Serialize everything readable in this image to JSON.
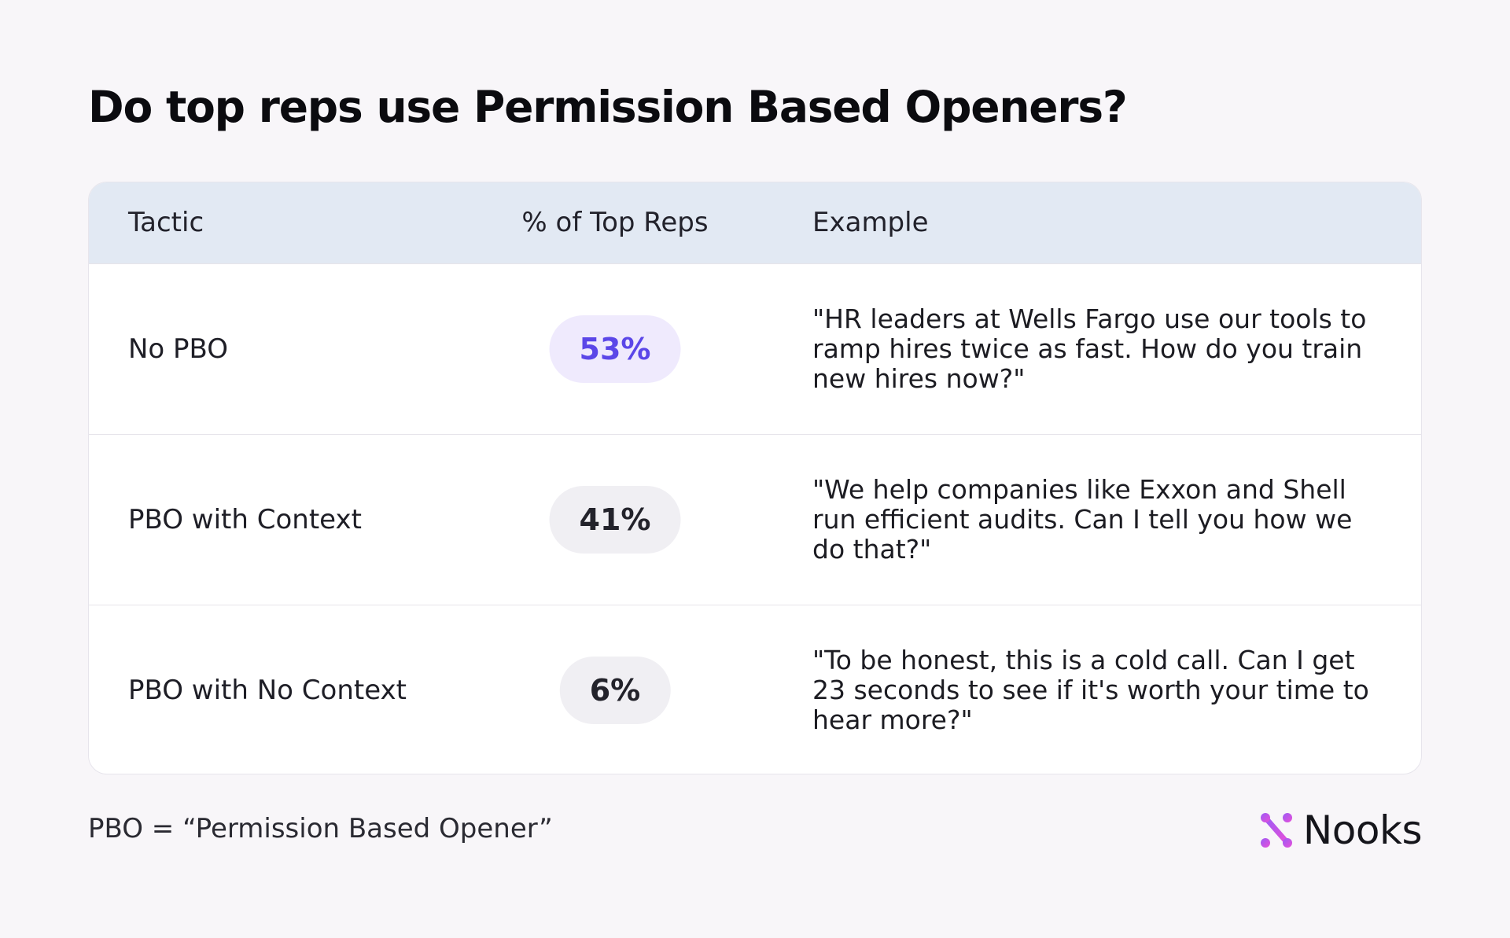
{
  "title": "Do top reps use Permission Based Openers?",
  "table": {
    "headers": {
      "tactic": "Tactic",
      "percent": "% of Top Reps",
      "example": "Example"
    },
    "rows": [
      {
        "tactic": "No PBO",
        "percent_label": "53%",
        "example": "\"HR leaders at Wells Fargo use our tools to ramp hires twice as fast. How do you train new hires now?\""
      },
      {
        "tactic": "PBO with Context",
        "percent_label": "41%",
        "example": "\"We help companies like Exxon and Shell run efficient audits. Can I tell you how we do that?\""
      },
      {
        "tactic": "PBO with No Context",
        "percent_label": "6%",
        "example": "\"To be honest, this is a cold call. Can I get 23 seconds to see if it's worth your time to hear more?\""
      }
    ]
  },
  "footnote": "PBO = “Permission Based Opener”",
  "brand": {
    "name": "Nooks",
    "icon": "nooks-logo-icon"
  },
  "colors": {
    "background": "#f8f6f9",
    "header_band": "#e2e9f3",
    "highlight_text": "#5b47e8",
    "highlight_pill": "#efeafd",
    "pill": "#f0eff3",
    "logo_gradient_start": "#9b5cf6",
    "logo_gradient_end": "#e84fd8"
  },
  "chart_data": {
    "type": "table",
    "title": "Do top reps use Permission Based Openers?",
    "columns": [
      "Tactic",
      "% of Top Reps",
      "Example"
    ],
    "categories": [
      "No PBO",
      "PBO with Context",
      "PBO with No Context"
    ],
    "values": [
      53,
      41,
      6
    ],
    "unit": "%",
    "highlighted_category": "No PBO",
    "examples": [
      "\"HR leaders at Wells Fargo use our tools to ramp hires twice as fast. How do you train new hires now?\"",
      "\"We help companies like Exxon and Shell run efficient audits. Can I tell you how we do that?\"",
      "\"To be honest, this is a cold call. Can I get 23 seconds to see if it's worth your time to hear more?\""
    ]
  }
}
